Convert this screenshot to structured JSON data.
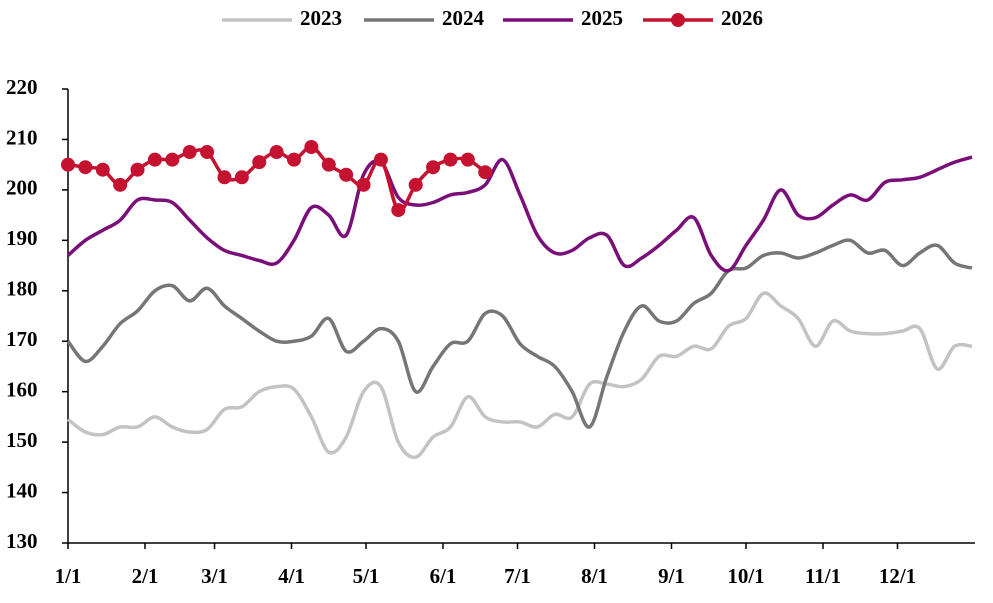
{
  "chart_data": {
    "type": "line",
    "x": [
      0,
      7,
      14,
      21,
      28,
      35,
      42,
      49,
      56,
      63,
      70,
      77,
      84,
      91,
      98,
      105,
      112,
      119,
      126,
      133,
      140,
      147,
      154,
      161,
      168,
      175,
      182,
      189,
      196,
      203,
      210,
      217,
      224,
      231,
      238,
      245,
      252,
      259,
      266,
      273,
      280,
      287,
      294,
      301,
      308,
      315,
      322,
      329,
      336,
      343,
      350,
      357,
      364
    ],
    "xlim": [
      0,
      364
    ],
    "xticks": [
      {
        "value": 0,
        "label": "1/1"
      },
      {
        "value": 31,
        "label": "2/1"
      },
      {
        "value": 59,
        "label": "3/1"
      },
      {
        "value": 90,
        "label": "4/1"
      },
      {
        "value": 120,
        "label": "5/1"
      },
      {
        "value": 151,
        "label": "6/1"
      },
      {
        "value": 181,
        "label": "7/1"
      },
      {
        "value": 212,
        "label": "8/1"
      },
      {
        "value": 243,
        "label": "9/1"
      },
      {
        "value": 273,
        "label": "10/1"
      },
      {
        "value": 304,
        "label": "11/1"
      },
      {
        "value": 334,
        "label": "12/1"
      }
    ],
    "ylim": [
      130,
      220
    ],
    "yticks": [
      130,
      140,
      150,
      160,
      170,
      180,
      190,
      200,
      210,
      220
    ],
    "legend": "top",
    "series": [
      {
        "name": "2023",
        "color": "#c3c3c3",
        "values": [
          154.5,
          152,
          151.5,
          153,
          153,
          155,
          153,
          152,
          152.5,
          156.5,
          157,
          160,
          161,
          160.5,
          155,
          148,
          151,
          160,
          161,
          150,
          147,
          151,
          153,
          159,
          155,
          154,
          154,
          153,
          155.5,
          155,
          161.5,
          161.5,
          161,
          162.5,
          167,
          167,
          169,
          168.5,
          173,
          174.5,
          179.5,
          177,
          174.5,
          169,
          174,
          172,
          171.5,
          171.5,
          172,
          172.5,
          164.5,
          169,
          169
        ]
      },
      {
        "name": "2024",
        "color": "#767676",
        "values": [
          170,
          166,
          169,
          173.5,
          176,
          180,
          181,
          178,
          180.5,
          177,
          174.5,
          172,
          170,
          170,
          171,
          174.5,
          168,
          170,
          172.5,
          170,
          160,
          165,
          169.5,
          170,
          175.5,
          175,
          169.5,
          167,
          165,
          160,
          153,
          163,
          172,
          177,
          174,
          174,
          177.5,
          179.5,
          184,
          184.5,
          187,
          187.5,
          186.5,
          187.5,
          189,
          190,
          187.5,
          188,
          185,
          187.5,
          189,
          185.5,
          184.5
        ]
      },
      {
        "name": "2025",
        "color": "#7a0f7a",
        "values": [
          187,
          190,
          192,
          194,
          198,
          198,
          197.5,
          194,
          190.5,
          188,
          187,
          186,
          185.5,
          190,
          196.5,
          195,
          191,
          203,
          205.5,
          198.5,
          197,
          197.5,
          199,
          199.5,
          201,
          206,
          199,
          191,
          187.5,
          188,
          190.5,
          191,
          185,
          186.5,
          189,
          192,
          194.5,
          187,
          184,
          189,
          194,
          200,
          195,
          194.5,
          197,
          199,
          198,
          201.5,
          202,
          202.5,
          204,
          205.5,
          206.5
        ]
      },
      {
        "name": "2026",
        "color": "#c41230",
        "marker": "circle",
        "values": [
          205,
          204.5,
          204,
          201,
          204,
          206,
          206,
          207.5,
          207.5,
          202.5,
          202.5,
          205.5,
          207.5,
          206,
          208.5,
          205,
          203,
          201,
          206,
          196,
          201,
          204.5,
          206,
          206,
          203.5,
          null,
          null,
          null,
          null,
          null,
          null,
          null,
          null,
          null,
          null,
          null,
          null,
          null,
          null,
          null,
          null,
          null,
          null,
          null,
          null,
          null,
          null,
          null,
          null,
          null,
          null,
          null,
          null
        ]
      }
    ]
  }
}
